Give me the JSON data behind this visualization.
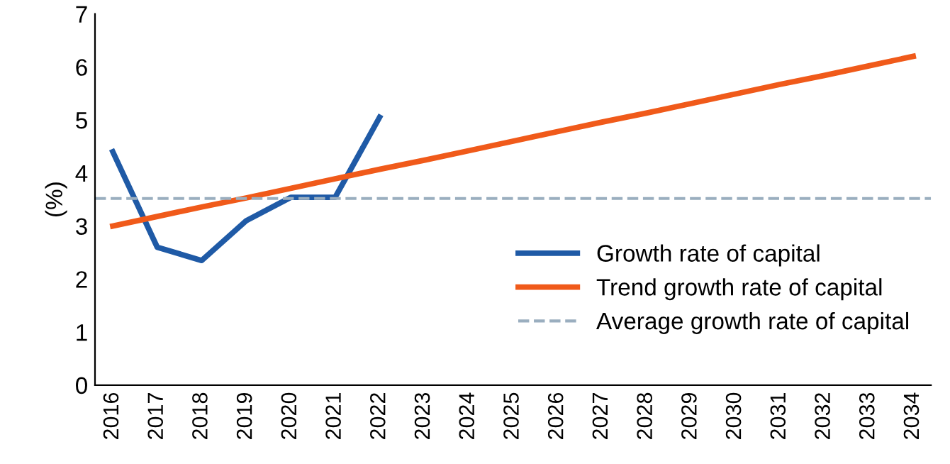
{
  "chart_data": {
    "type": "line",
    "ylabel": "(%)",
    "categories": [
      "2016",
      "2017",
      "2018",
      "2019",
      "2020",
      "2021",
      "2022",
      "2023",
      "2024",
      "2025",
      "2026",
      "2027",
      "2028",
      "2029",
      "2030",
      "2031",
      "2032",
      "2033",
      "2034"
    ],
    "series": [
      {
        "name": "Growth rate of capital",
        "color": "#1f5aa6",
        "values": [
          4.4,
          2.6,
          2.35,
          3.1,
          3.54,
          3.54,
          5.05,
          null,
          null,
          null,
          null,
          null,
          null,
          null,
          null,
          null,
          null,
          null,
          null
        ]
      },
      {
        "name": "Trend growth rate of capital",
        "color": "#f05a1a",
        "values": [
          3.0,
          3.18,
          3.36,
          3.53,
          3.71,
          3.89,
          4.07,
          4.24,
          4.42,
          4.6,
          4.78,
          4.96,
          5.13,
          5.31,
          5.49,
          5.67,
          5.84,
          6.02,
          6.2
        ]
      }
    ],
    "ref_lines": [
      {
        "axis": "y",
        "value": 3.52,
        "label": "Average growth rate of capital",
        "color": "#9aaebf",
        "line_style": "dashed"
      }
    ],
    "ylim": [
      0,
      7
    ],
    "yticks": [
      0,
      1,
      2,
      3,
      4,
      5,
      6,
      7
    ],
    "grid": false,
    "legend": "bottom right",
    "line_style": "solid",
    "marker": "none"
  }
}
